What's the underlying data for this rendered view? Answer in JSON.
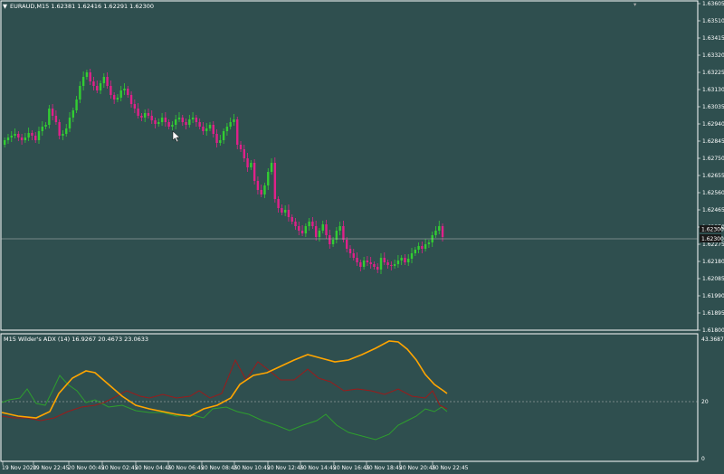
{
  "colors": {
    "background": "#2f4f4f",
    "text": "#ffffff",
    "bull": "#32cd32",
    "bear": "#e0218a",
    "adx": "#ffa500",
    "plus_di": "#2e9e2e",
    "minus_di": "#9b1b1b",
    "current_price_bg": "#1a1a1a"
  },
  "main_panel": {
    "title": "EURAUD,M15  1.62381 1.62416 1.62291 1.62300",
    "price_labels": [
      "1.63605",
      "1.63510",
      "1.63415",
      "1.63320",
      "1.63225",
      "1.63130",
      "1.63035",
      "1.62940",
      "1.62845",
      "1.62750",
      "1.62655",
      "1.62560",
      "1.62465",
      "1.62370",
      "1.62275",
      "1.62180",
      "1.62085",
      "1.61990",
      "1.61895",
      "1.61800"
    ],
    "current_price": "1.62300",
    "bid_label": "1.62300"
  },
  "indicator_panel": {
    "title": "M15 Wilder's ADX (14) 16.9267 20.4673 23.0633",
    "top_label": "43.3687",
    "level_label": "20",
    "bottom_label": "0"
  },
  "time_labels": [
    "19 Nov 2020",
    "19 Nov 22:45",
    "20 Nov 00:45",
    "20 Nov 02:45",
    "20 Nov 04:45",
    "20 Nov 06:45",
    "20 Nov 08:45",
    "20 Nov 10:45",
    "20 Nov 12:45",
    "20 Nov 14:45",
    "20 Nov 16:45",
    "20 Nov 18:45",
    "20 Nov 20:45",
    "20 Nov 22:45"
  ]
}
